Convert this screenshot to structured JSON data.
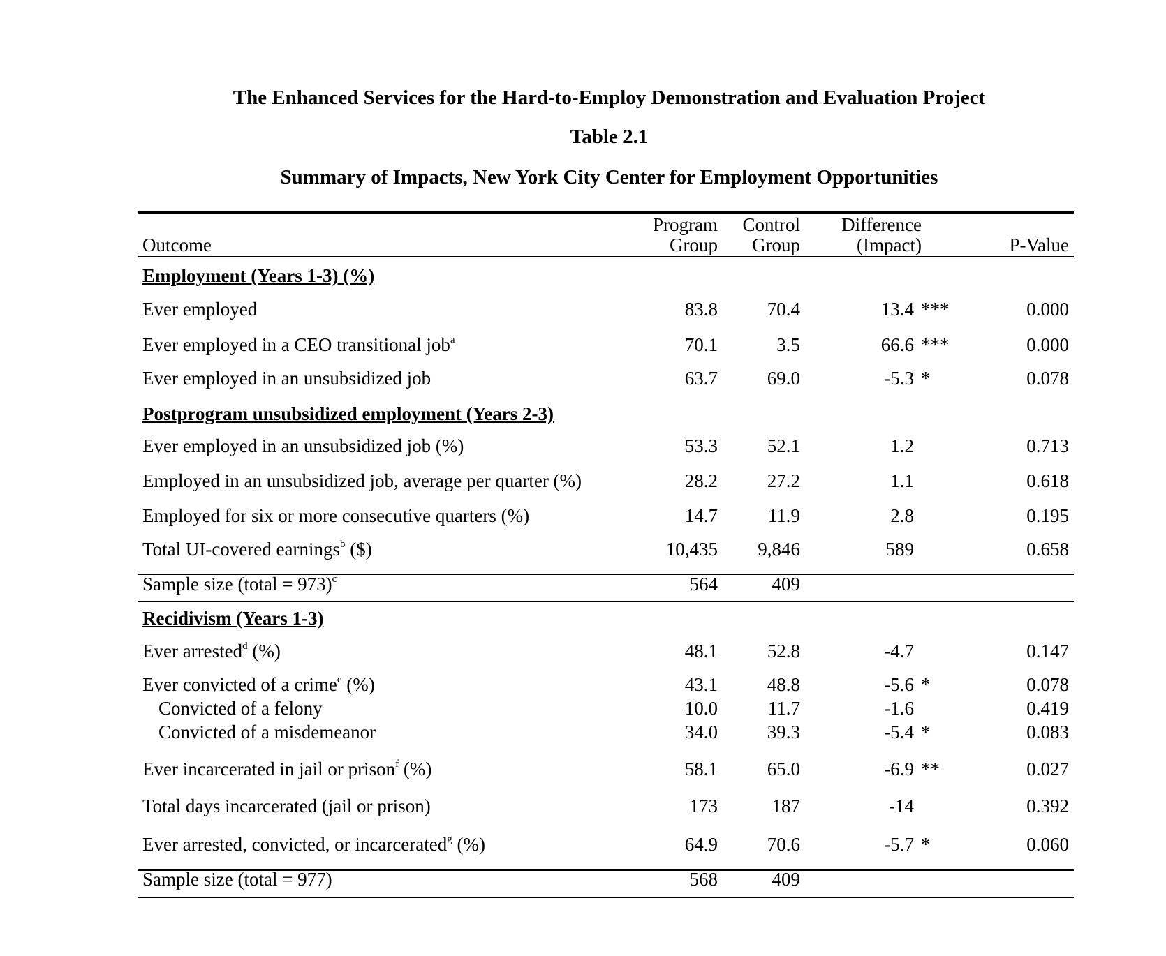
{
  "titles": {
    "project": "The Enhanced Services for the Hard-to-Employ Demonstration and Evaluation Project",
    "table_number": "Table 2.1",
    "table_title": "Summary of Impacts, New York City Center for Employment Opportunities"
  },
  "headers": {
    "outcome": "Outcome",
    "program_line1": "Program",
    "program_line2": "Group",
    "control_line1": "Control",
    "control_line2": "Group",
    "difference_line1": "Difference",
    "difference_line2": "(Impact)",
    "pvalue": "P-Value"
  },
  "sections": {
    "employment": "Employment (Years 1-3) (%)",
    "postprogram": "Postprogram unsubsidized employment  (Years 2-3)",
    "recidivism": "Recidivism (Years 1-3)"
  },
  "rows": [
    {
      "label": "Ever employed",
      "note": "",
      "suffix": "",
      "program": "83.8",
      "control": "70.4",
      "diff": "13.4",
      "stars": "***",
      "pvalue": "0.000"
    },
    {
      "label": "Ever employed in a CEO transitional job",
      "note": "a",
      "suffix": "",
      "program": "70.1",
      "control": "3.5",
      "diff": "66.6",
      "stars": "***",
      "pvalue": "0.000"
    },
    {
      "label": "Ever employed in an unsubsidized job",
      "note": "",
      "suffix": "",
      "program": "63.7",
      "control": "69.0",
      "diff": "-5.3",
      "stars": "*",
      "pvalue": "0.078"
    },
    {
      "label": "Ever employed in an unsubsidized job (%)",
      "note": "",
      "suffix": "",
      "program": "53.3",
      "control": "52.1",
      "diff": "1.2",
      "stars": "",
      "pvalue": "0.713"
    },
    {
      "label": "Employed in an unsubsidized job, average per quarter (%)",
      "note": "",
      "suffix": "",
      "program": "28.2",
      "control": "27.2",
      "diff": "1.1",
      "stars": "",
      "pvalue": "0.618"
    },
    {
      "label": "Employed for six or more consecutive quarters (%)",
      "note": "",
      "suffix": "",
      "program": "14.7",
      "control": "11.9",
      "diff": "2.8",
      "stars": "",
      "pvalue": "0.195"
    },
    {
      "label": "Total UI-covered earnings",
      "note": "b",
      "suffix": " ($)",
      "program": "10,435",
      "control": "9,846",
      "diff": "589",
      "stars": "",
      "pvalue": "0.658"
    },
    {
      "label": "Sample size (total = 973)",
      "note": "c",
      "suffix": "",
      "program": "564",
      "control": "409",
      "diff": "",
      "stars": "",
      "pvalue": ""
    },
    {
      "label": "Ever arrested",
      "note": "d",
      "suffix": " (%)",
      "program": "48.1",
      "control": "52.8",
      "diff": "-4.7",
      "stars": "",
      "pvalue": "0.147"
    },
    {
      "label": "Ever convicted of a crime",
      "note": "e",
      "suffix": " (%)",
      "program": "43.1",
      "control": "48.8",
      "diff": "-5.6",
      "stars": "*",
      "pvalue": "0.078"
    },
    {
      "label": "Convicted of a felony",
      "note": "",
      "suffix": "",
      "program": "10.0",
      "control": "11.7",
      "diff": "-1.6",
      "stars": "",
      "pvalue": "0.419"
    },
    {
      "label": "Convicted of a misdemeanor",
      "note": "",
      "suffix": "",
      "program": "34.0",
      "control": "39.3",
      "diff": "-5.4",
      "stars": "*",
      "pvalue": "0.083"
    },
    {
      "label": "Ever incarcerated in jail or prison",
      "note": "f",
      "suffix": " (%)",
      "program": "58.1",
      "control": "65.0",
      "diff": "-6.9",
      "stars": "**",
      "pvalue": "0.027"
    },
    {
      "label": "Total days incarcerated (jail or prison)",
      "note": "",
      "suffix": "",
      "program": "173",
      "control": "187",
      "diff": "-14",
      "stars": "",
      "pvalue": "0.392"
    },
    {
      "label": "Ever arrested, convicted, or incarcerated",
      "note": "g",
      "suffix": " (%)",
      "program": "64.9",
      "control": "70.6",
      "diff": "-5.7",
      "stars": "*",
      "pvalue": "0.060"
    },
    {
      "label": "Sample size (total = 977)",
      "note": "",
      "suffix": "",
      "program": "568",
      "control": "409",
      "diff": "",
      "stars": "",
      "pvalue": ""
    }
  ]
}
